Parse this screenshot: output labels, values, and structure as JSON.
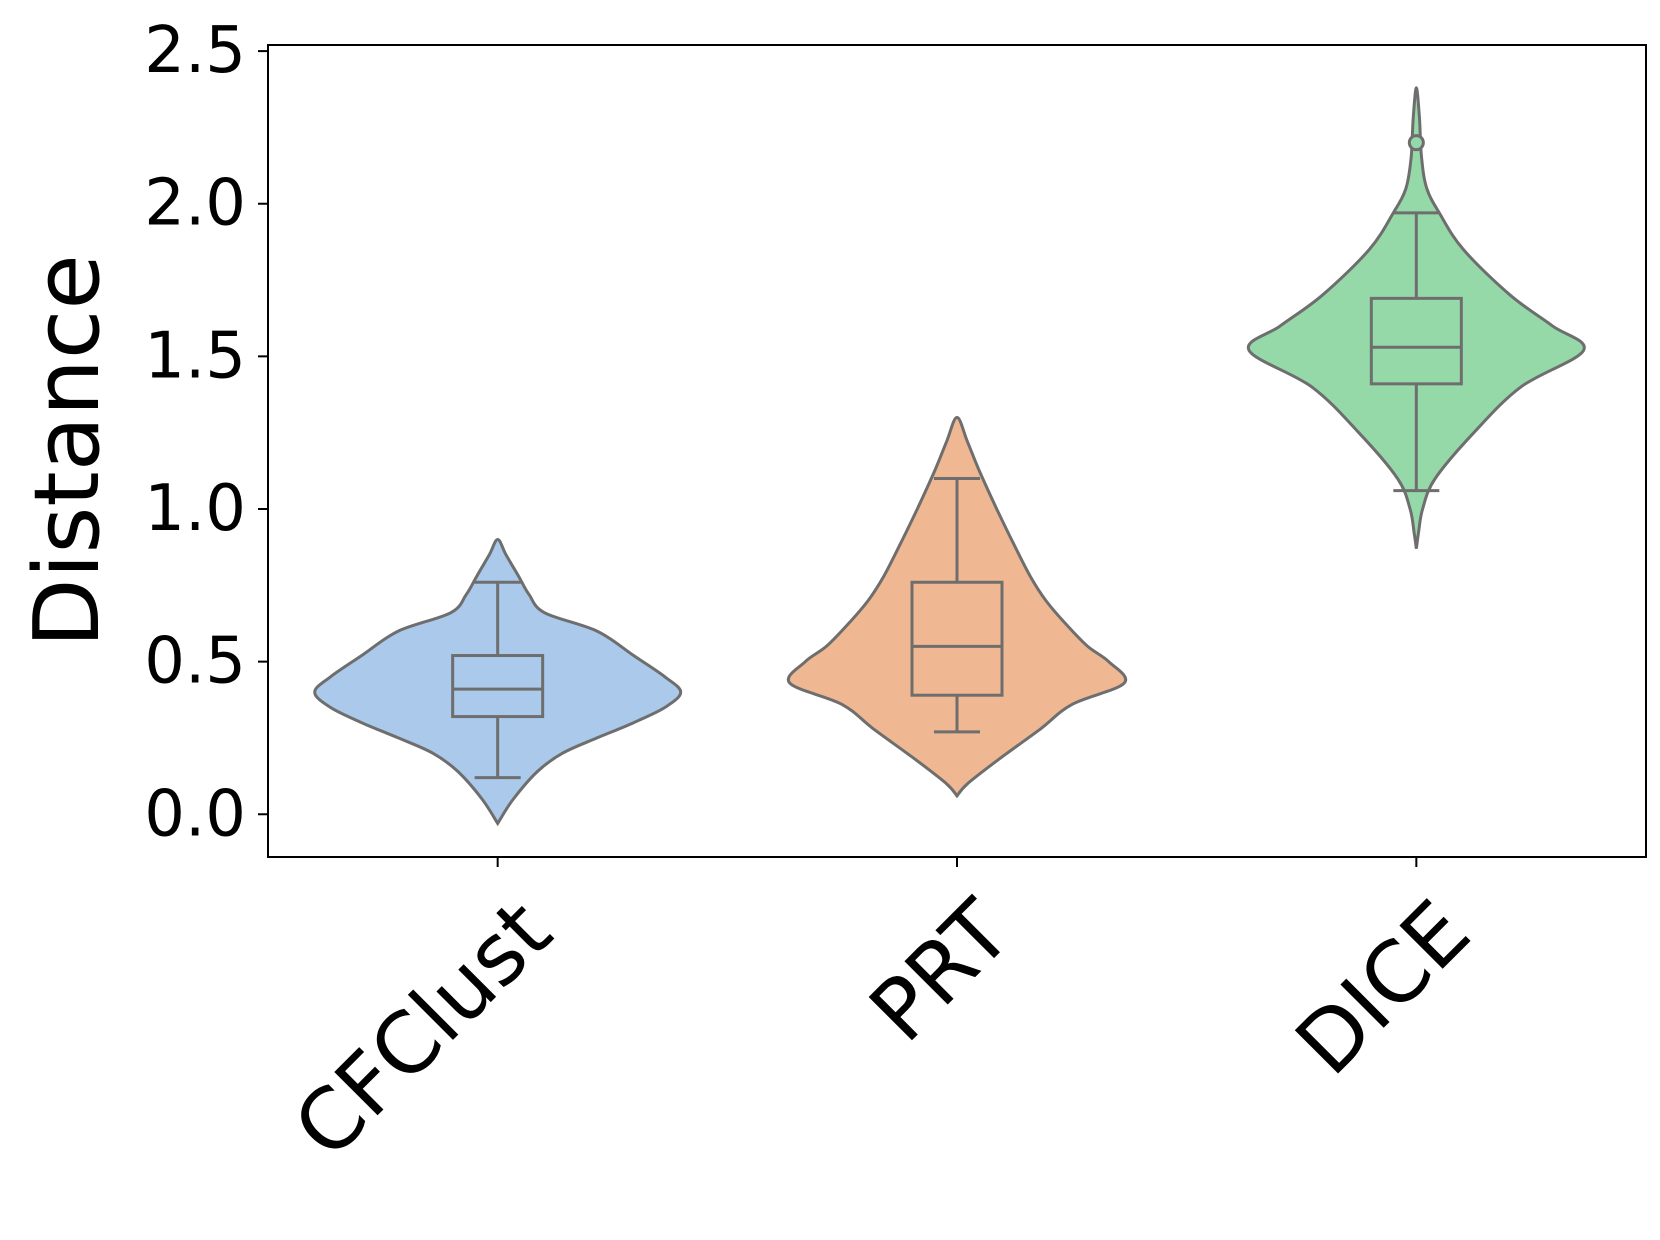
{
  "chart_data": {
    "type": "violin",
    "title": "",
    "xlabel": "",
    "ylabel": "Distance",
    "ylim": [
      -0.14,
      2.52
    ],
    "yticks": [
      0.0,
      0.5,
      1.0,
      1.5,
      2.0,
      2.5
    ],
    "ytick_labels": [
      "0.0",
      "0.5",
      "1.0",
      "1.5",
      "2.0",
      "2.5"
    ],
    "grid": false,
    "legend": "none",
    "categories": [
      "CFClust",
      "PRT",
      "DICE"
    ],
    "series": [
      {
        "category": "CFClust",
        "color": "#aac9eb",
        "density": [
          [
            -0.03,
            0
          ],
          [
            0.05,
            0.15
          ],
          [
            0.14,
            0.38
          ],
          [
            0.2,
            0.62
          ],
          [
            0.25,
            0.95
          ],
          [
            0.3,
            1.3
          ],
          [
            0.35,
            1.6
          ],
          [
            0.4,
            1.75
          ],
          [
            0.45,
            1.6
          ],
          [
            0.52,
            1.3
          ],
          [
            0.6,
            0.95
          ],
          [
            0.66,
            0.45
          ],
          [
            0.72,
            0.3
          ],
          [
            0.78,
            0.2
          ],
          [
            0.85,
            0.08
          ],
          [
            0.9,
            0
          ]
        ],
        "box": {
          "whisker_low": 0.12,
          "q1": 0.32,
          "median": 0.41,
          "q3": 0.52,
          "whisker_high": 0.76
        },
        "outliers": []
      },
      {
        "category": "PRT",
        "color": "#f0b892",
        "density": [
          [
            0.06,
            0
          ],
          [
            0.1,
            0.1
          ],
          [
            0.18,
            0.4
          ],
          [
            0.28,
            0.8
          ],
          [
            0.36,
            1.1
          ],
          [
            0.43,
            1.6
          ],
          [
            0.5,
            1.45
          ],
          [
            0.55,
            1.25
          ],
          [
            0.62,
            1.05
          ],
          [
            0.7,
            0.85
          ],
          [
            0.78,
            0.7
          ],
          [
            0.88,
            0.55
          ],
          [
            1.0,
            0.38
          ],
          [
            1.12,
            0.22
          ],
          [
            1.22,
            0.1
          ],
          [
            1.3,
            0
          ]
        ],
        "box": {
          "whisker_low": 0.27,
          "q1": 0.39,
          "median": 0.55,
          "q3": 0.76,
          "whisker_high": 1.1
        },
        "outliers": []
      },
      {
        "category": "DICE",
        "color": "#95d9a9",
        "density": [
          [
            0.87,
            0
          ],
          [
            0.92,
            0.02
          ],
          [
            1.0,
            0.06
          ],
          [
            1.1,
            0.18
          ],
          [
            1.25,
            0.55
          ],
          [
            1.4,
            1.0
          ],
          [
            1.52,
            1.6
          ],
          [
            1.6,
            1.3
          ],
          [
            1.7,
            0.9
          ],
          [
            1.85,
            0.45
          ],
          [
            1.97,
            0.22
          ],
          [
            2.05,
            0.1
          ],
          [
            2.15,
            0.05
          ],
          [
            2.28,
            0.03
          ],
          [
            2.38,
            0
          ]
        ],
        "box": {
          "whisker_low": 1.06,
          "q1": 1.41,
          "median": 1.53,
          "q3": 1.69,
          "whisker_high": 1.97
        },
        "outliers": [
          2.2
        ]
      }
    ]
  }
}
